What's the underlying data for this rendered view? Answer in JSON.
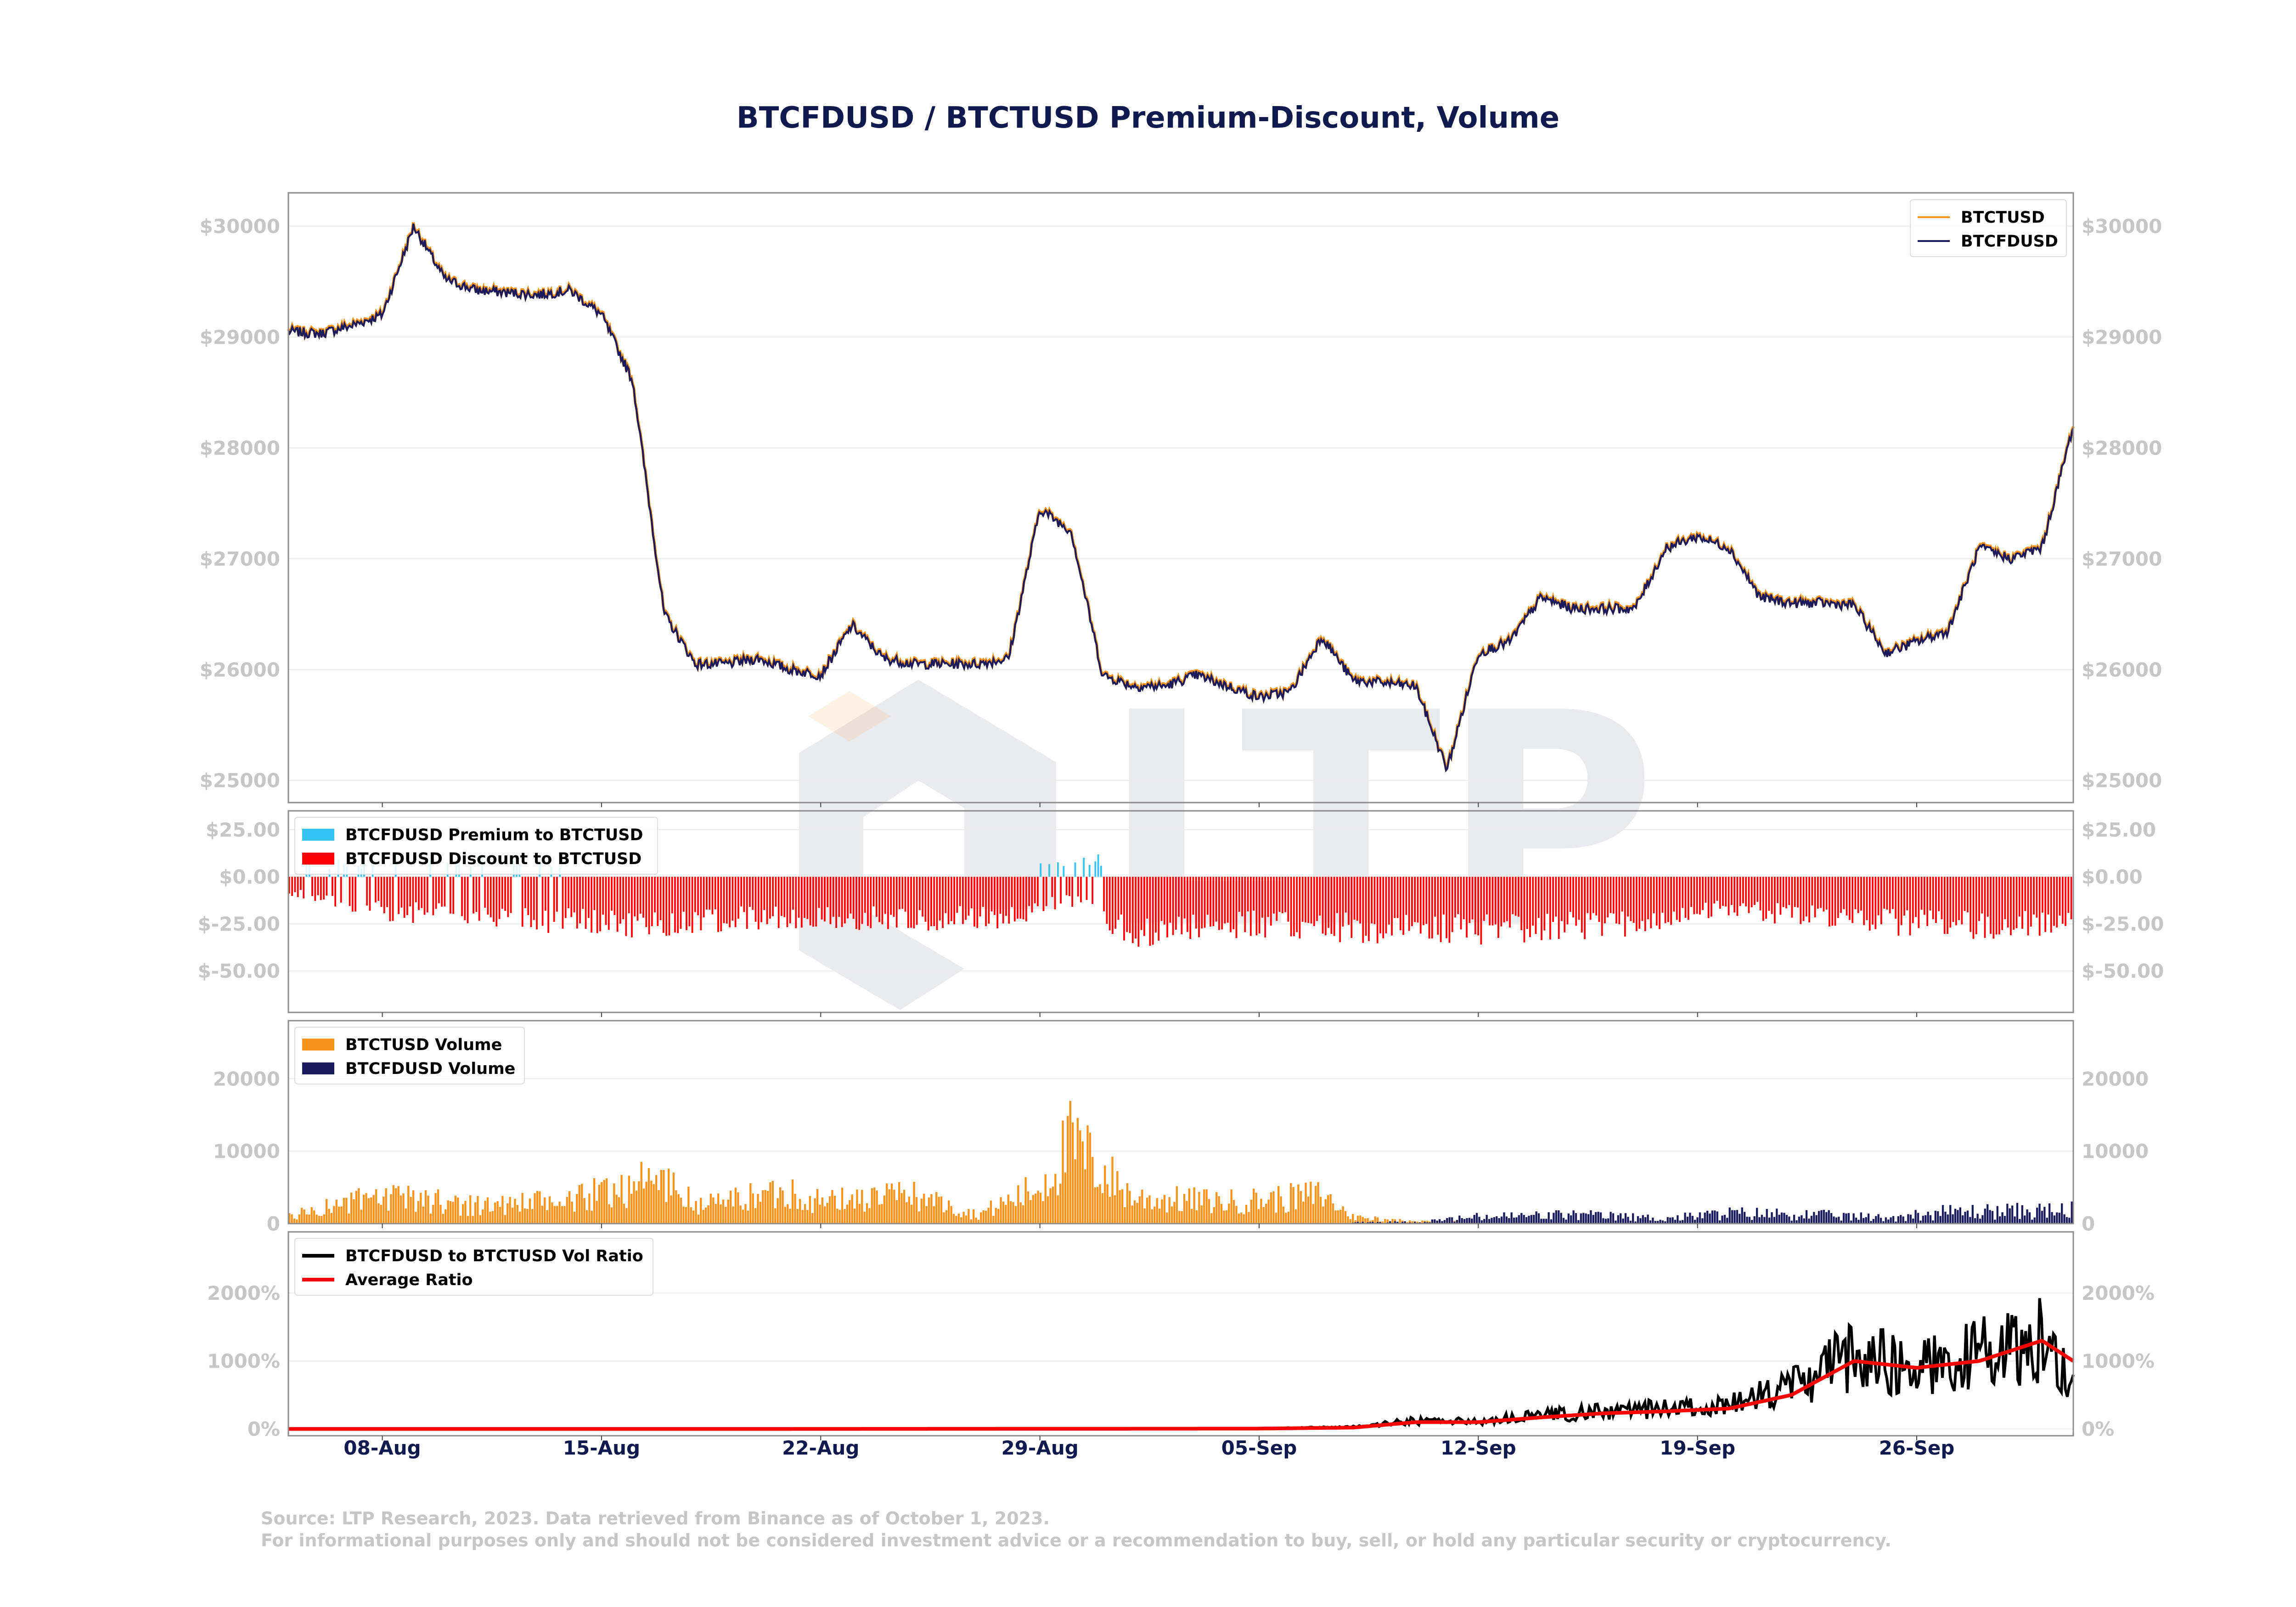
{
  "chart_data": [
    {
      "type": "line",
      "title": "BTCFDUSD / BTCTUSD Premium-Discount, Volume",
      "x_ticks": [
        "08-Aug",
        "15-Aug",
        "22-Aug",
        "29-Aug",
        "05-Sep",
        "12-Sep",
        "19-Sep",
        "26-Sep"
      ],
      "x_range": [
        "2023-08-05",
        "2023-10-01"
      ],
      "ylim": [
        24800,
        30300
      ],
      "y_ticks": [
        "$25000",
        "$26000",
        "$27000",
        "$28000",
        "$29000",
        "$30000"
      ],
      "legend_position": "top-right",
      "colors": {
        "BTCTUSD": "#f7931a",
        "BTCFDUSD": "#1a1a5e"
      },
      "series": [
        {
          "name": "BTCTUSD"
        },
        {
          "name": "BTCFDUSD",
          "x": [
            "2023-08-05",
            "2023-08-06",
            "2023-08-07",
            "2023-08-08",
            "2023-08-09",
            "2023-08-10",
            "2023-08-11",
            "2023-08-12",
            "2023-08-13",
            "2023-08-14",
            "2023-08-15",
            "2023-08-16",
            "2023-08-17",
            "2023-08-18",
            "2023-08-19",
            "2023-08-20",
            "2023-08-21",
            "2023-08-22",
            "2023-08-23",
            "2023-08-24",
            "2023-08-25",
            "2023-08-26",
            "2023-08-27",
            "2023-08-28",
            "2023-08-29",
            "2023-08-30",
            "2023-08-31",
            "2023-09-01",
            "2023-09-02",
            "2023-09-03",
            "2023-09-04",
            "2023-09-05",
            "2023-09-06",
            "2023-09-07",
            "2023-09-08",
            "2023-09-09",
            "2023-09-10",
            "2023-09-11",
            "2023-09-12",
            "2023-09-13",
            "2023-09-14",
            "2023-09-15",
            "2023-09-16",
            "2023-09-17",
            "2023-09-18",
            "2023-09-19",
            "2023-09-20",
            "2023-09-21",
            "2023-09-22",
            "2023-09-23",
            "2023-09-24",
            "2023-09-25",
            "2023-09-26",
            "2023-09-27",
            "2023-09-28",
            "2023-09-29",
            "2023-09-30",
            "2023-10-01"
          ],
          "values": [
            29050,
            29030,
            29100,
            29200,
            30000,
            29520,
            29420,
            29400,
            29380,
            29420,
            29200,
            28600,
            26500,
            26050,
            26050,
            26100,
            26000,
            25950,
            26400,
            26100,
            26050,
            26050,
            26050,
            26100,
            27450,
            27250,
            25950,
            25850,
            25850,
            25950,
            25850,
            25750,
            25800,
            26300,
            25900,
            25880,
            25850,
            25100,
            26150,
            26250,
            26650,
            26550,
            26550,
            26550,
            27100,
            27200,
            27100,
            26650,
            26600,
            26600,
            26580,
            26150,
            26250,
            26350,
            27100,
            27000,
            27100,
            28200
          ]
        }
      ]
    },
    {
      "type": "bar",
      "ylim": [
        -72,
        35
      ],
      "y_ticks": [
        "$-50.00",
        "$-25.00",
        "$0.00",
        "$25.00"
      ],
      "legend_position": "top-left",
      "colors": {
        "premium": "#36c2f5",
        "discount": "#ff0000"
      },
      "series": [
        {
          "name": "BTCFDUSD Premium to BTCTUSD"
        },
        {
          "name": "BTCFDUSD Discount to BTCTUSD",
          "x": [
            "2023-08-05",
            "2023-08-08",
            "2023-08-12",
            "2023-08-16",
            "2023-08-20",
            "2023-08-24",
            "2023-08-28",
            "2023-08-30",
            "2023-09-01",
            "2023-09-04",
            "2023-09-08",
            "2023-09-12",
            "2023-09-16",
            "2023-09-20",
            "2023-09-24",
            "2023-09-28",
            "2023-10-01"
          ],
          "values": [
            -8,
            -18,
            -22,
            -25,
            -22,
            -22,
            -22,
            -12,
            -30,
            -25,
            -27,
            -28,
            -26,
            -17,
            -23,
            -26,
            -25
          ]
        }
      ]
    },
    {
      "type": "bar",
      "ylim": [
        0,
        28000
      ],
      "y_ticks": [
        "0",
        "10000",
        "20000"
      ],
      "legend_position": "top-left",
      "colors": {
        "BTCTUSD Volume": "#f7931a",
        "BTCFDUSD Volume": "#1a1a5e"
      },
      "series": [
        {
          "name": "BTCTUSD Volume",
          "x": [
            "2023-08-05",
            "2023-08-07",
            "2023-08-09",
            "2023-08-11",
            "2023-08-14",
            "2023-08-16",
            "2023-08-17",
            "2023-08-18",
            "2023-08-21",
            "2023-08-22",
            "2023-08-25",
            "2023-08-27",
            "2023-08-29",
            "2023-08-30",
            "2023-09-01",
            "2023-09-04",
            "2023-09-06",
            "2023-09-07",
            "2023-09-08",
            "2023-09-10",
            "2023-09-15",
            "2023-09-20",
            "2023-09-25",
            "2023-10-01"
          ],
          "values": [
            1000,
            3000,
            3500,
            2500,
            3000,
            5500,
            6000,
            2500,
            4500,
            3000,
            4000,
            1200,
            5000,
            11000,
            3500,
            3000,
            3500,
            4000,
            900,
            300,
            150,
            100,
            80,
            60
          ]
        },
        {
          "name": "BTCFDUSD Volume",
          "x": [
            "2023-09-08",
            "2023-09-10",
            "2023-09-12",
            "2023-09-15",
            "2023-09-18",
            "2023-09-20",
            "2023-09-22",
            "2023-09-25",
            "2023-09-27",
            "2023-09-29",
            "2023-10-01"
          ],
          "values": [
            200,
            200,
            900,
            1200,
            700,
            1400,
            1300,
            800,
            1600,
            1700,
            1800
          ]
        }
      ]
    },
    {
      "type": "line",
      "ylim": [
        -100,
        2900
      ],
      "y_ticks": [
        "0%",
        "1000%",
        "2000%"
      ],
      "legend_position": "top-left",
      "colors": {
        "BTCFDUSD to BTCTUSD Vol Ratio": "#000000",
        "Average Ratio": "#ff0000"
      },
      "series": [
        {
          "name": "BTCFDUSD to BTCTUSD Vol Ratio",
          "x": [
            "2023-08-05",
            "2023-08-20",
            "2023-09-05",
            "2023-09-08",
            "2023-09-10",
            "2023-09-12",
            "2023-09-14",
            "2023-09-16",
            "2023-09-18",
            "2023-09-20",
            "2023-09-22",
            "2023-09-24",
            "2023-09-26",
            "2023-09-28",
            "2023-09-30",
            "2023-10-01"
          ],
          "values": [
            0,
            0,
            5,
            30,
            120,
            110,
            200,
            250,
            300,
            350,
            600,
            1100,
            900,
            1100,
            1300,
            700
          ]
        },
        {
          "name": "Average Ratio",
          "x": [
            "2023-08-05",
            "2023-08-20",
            "2023-09-05",
            "2023-09-08",
            "2023-09-10",
            "2023-09-12",
            "2023-09-14",
            "2023-09-16",
            "2023-09-18",
            "2023-09-20",
            "2023-09-22",
            "2023-09-24",
            "2023-09-26",
            "2023-09-28",
            "2023-09-30",
            "2023-10-01"
          ],
          "values": [
            0,
            0,
            5,
            20,
            100,
            100,
            170,
            230,
            260,
            300,
            500,
            1000,
            900,
            1000,
            1300,
            1000
          ]
        }
      ]
    }
  ],
  "source_lines": [
    "Source: LTP Research, 2023. Data retrieved from Binance as of October 1, 2023.",
    "For informational purposes only and should not be considered investment advice or a recommendation to buy, sell, or hold any particular security or cryptocurrency."
  ],
  "watermark": "LTP"
}
